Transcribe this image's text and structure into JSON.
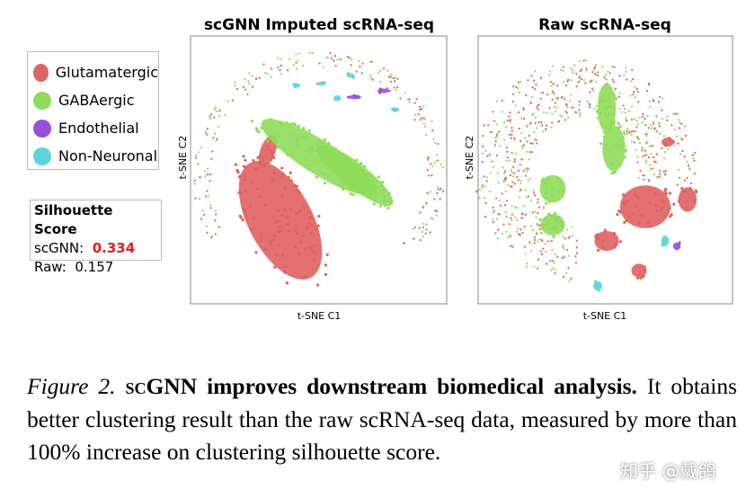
{
  "figure": {
    "panels": [
      {
        "title": "scGNN Imputed scRNA-seq",
        "x_label": "t-SNE C1",
        "y_label": "t-SNE C2"
      },
      {
        "title": "Raw scRNA-seq",
        "x_label": "t-SNE C1",
        "y_label": "t-SNE C2"
      }
    ],
    "legend": [
      {
        "label": "Glutamatergic",
        "color": "#e06262"
      },
      {
        "label": "GABAergic",
        "color": "#8fdc5a"
      },
      {
        "label": "Endothelial",
        "color": "#9b4fd6"
      },
      {
        "label": "Non-Neuronal",
        "color": "#5fd3dc"
      }
    ],
    "silhouette": {
      "title": "Silhouette Score",
      "rows": [
        {
          "label": "scGNN:",
          "value": "0.334"
        },
        {
          "label": "Raw:",
          "value": "0.157"
        }
      ]
    }
  },
  "caption": {
    "label": "Figure 2.",
    "method": "scGNN",
    "title": "improves downstream biomedical analysis.",
    "text": "It obtains better clustering result than the raw scRNA-seq data, measured by more than 100% increase on clustering silhouette score."
  },
  "watermark": "知乎 @戴鸽"
}
